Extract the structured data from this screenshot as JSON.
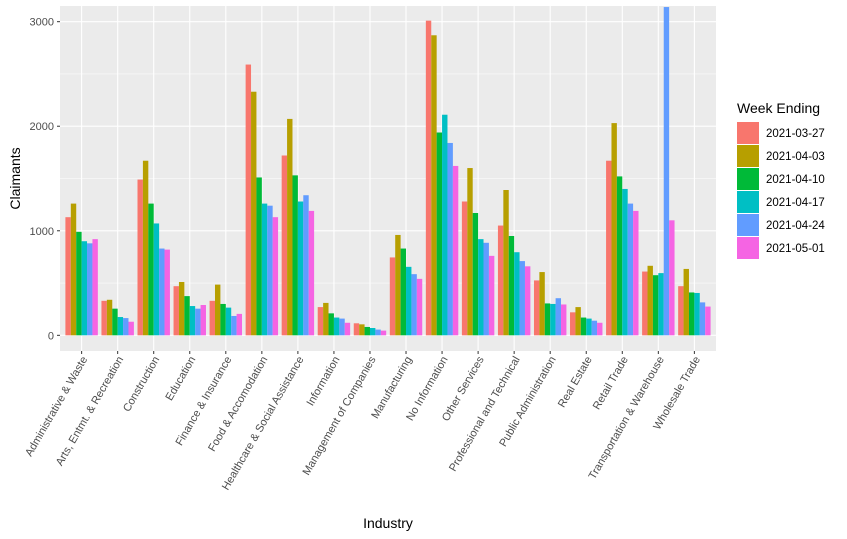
{
  "chart_data": {
    "type": "bar",
    "xlabel": "Industry",
    "ylabel": "Claimants",
    "ylim": [
      -150,
      3150
    ],
    "yticks": [
      0,
      1000,
      2000,
      3000
    ],
    "legend": {
      "title": "Week Ending",
      "placement": "right"
    },
    "categories": [
      "Administrative & Waste",
      "Arts, Entmt. & Recreation",
      "Construction",
      "Education",
      "Finance & Insurance",
      "Food & Accomodation",
      "Healthcare & Social Assistance",
      "Information",
      "Management of Companies",
      "Manufacturing",
      "No Information",
      "Other Services",
      "Professional and Technical",
      "Public Administration",
      "Real Estate",
      "Retail Trade",
      "Transportation & Warehouse",
      "Wholesale Trade"
    ],
    "series": [
      {
        "name": "2021-03-27",
        "color": "#F8766D",
        "values": [
          1130,
          330,
          1490,
          470,
          330,
          2590,
          1720,
          270,
          115,
          745,
          3010,
          1280,
          1050,
          525,
          220,
          1670,
          610,
          470
        ]
      },
      {
        "name": "2021-04-03",
        "color": "#B79F00",
        "values": [
          1260,
          340,
          1670,
          510,
          485,
          2330,
          2070,
          310,
          105,
          960,
          2870,
          1600,
          1390,
          605,
          270,
          2030,
          665,
          635
        ]
      },
      {
        "name": "2021-04-10",
        "color": "#00BA38",
        "values": [
          990,
          255,
          1260,
          375,
          300,
          1510,
          1530,
          210,
          80,
          830,
          1940,
          1170,
          950,
          305,
          170,
          1520,
          575,
          410
        ]
      },
      {
        "name": "2021-04-17",
        "color": "#00BFC4",
        "values": [
          900,
          175,
          1070,
          280,
          265,
          1260,
          1280,
          170,
          70,
          655,
          2110,
          920,
          795,
          300,
          160,
          1400,
          595,
          405
        ]
      },
      {
        "name": "2021-04-24",
        "color": "#619CFF",
        "values": [
          880,
          165,
          830,
          255,
          185,
          1240,
          1340,
          160,
          55,
          585,
          1840,
          885,
          710,
          355,
          140,
          1260,
          3140,
          315
        ]
      },
      {
        "name": "2021-05-01",
        "color": "#F564E3",
        "values": [
          920,
          130,
          820,
          290,
          205,
          1130,
          1190,
          120,
          45,
          540,
          1620,
          760,
          660,
          295,
          120,
          1190,
          1100,
          275
        ]
      }
    ]
  }
}
